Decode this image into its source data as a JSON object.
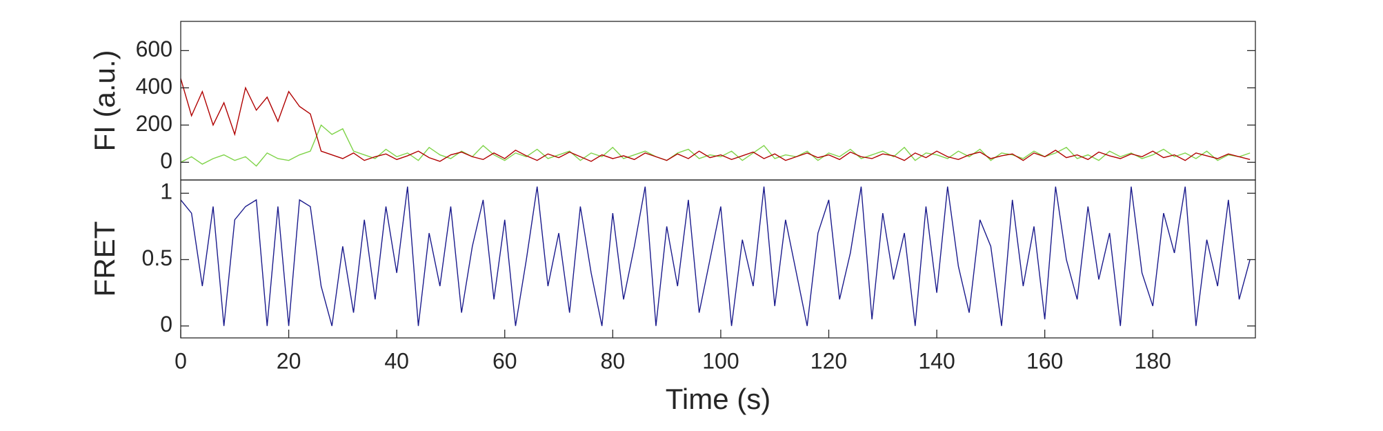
{
  "chart_data": [
    {
      "type": "line",
      "ylabel": "FI (a.u.)",
      "x": [
        0,
        2,
        4,
        6,
        8,
        10,
        12,
        14,
        16,
        18,
        20,
        22,
        24,
        26,
        28,
        30,
        32,
        34,
        36,
        38,
        40,
        42,
        44,
        46,
        48,
        50,
        52,
        54,
        56,
        58,
        60,
        62,
        64,
        66,
        68,
        70,
        72,
        74,
        76,
        78,
        80,
        82,
        84,
        86,
        88,
        90,
        92,
        94,
        96,
        98,
        100,
        102,
        104,
        106,
        108,
        110,
        112,
        114,
        116,
        118,
        120,
        122,
        124,
        126,
        128,
        130,
        132,
        134,
        136,
        138,
        140,
        142,
        144,
        146,
        148,
        150,
        152,
        154,
        156,
        158,
        160,
        162,
        164,
        166,
        168,
        170,
        172,
        174,
        176,
        178,
        180,
        182,
        184,
        186,
        188,
        190,
        192,
        194,
        196,
        198
      ],
      "xlim": [
        0,
        199
      ],
      "ylim": [
        -95,
        757
      ],
      "yticks": [
        0,
        200,
        400,
        600
      ],
      "series": [
        {
          "color": "#7ed348",
          "values": [
            0,
            30,
            -10,
            20,
            40,
            10,
            30,
            -20,
            50,
            20,
            10,
            40,
            60,
            200,
            150,
            180,
            60,
            40,
            20,
            70,
            30,
            50,
            10,
            80,
            40,
            20,
            60,
            30,
            90,
            40,
            10,
            50,
            30,
            70,
            20,
            40,
            60,
            10,
            50,
            30,
            80,
            20,
            40,
            60,
            30,
            10,
            50,
            70,
            20,
            40,
            30,
            60,
            10,
            50,
            90,
            20,
            40,
            30,
            60,
            10,
            50,
            30,
            70,
            20,
            40,
            60,
            30,
            80,
            10,
            50,
            40,
            20,
            60,
            30,
            70,
            10,
            50,
            40,
            20,
            60,
            30,
            50,
            80,
            20,
            40,
            10,
            60,
            30,
            50,
            20,
            40,
            70,
            30,
            50,
            20,
            60,
            10,
            40,
            30,
            50
          ]
        },
        {
          "color": "#b00000",
          "values": [
            450,
            250,
            380,
            200,
            320,
            150,
            400,
            280,
            350,
            220,
            380,
            300,
            260,
            60,
            40,
            20,
            50,
            10,
            30,
            45,
            15,
            35,
            60,
            25,
            5,
            40,
            55,
            30,
            15,
            50,
            20,
            65,
            35,
            10,
            45,
            25,
            55,
            30,
            5,
            40,
            20,
            35,
            15,
            50,
            30,
            10,
            45,
            20,
            60,
            25,
            40,
            15,
            35,
            55,
            20,
            45,
            10,
            30,
            50,
            25,
            40,
            15,
            55,
            30,
            20,
            45,
            35,
            10,
            50,
            25,
            60,
            30,
            15,
            40,
            55,
            20,
            35,
            45,
            10,
            50,
            30,
            65,
            25,
            40,
            15,
            55,
            35,
            20,
            45,
            30,
            60,
            25,
            40,
            10,
            50,
            35,
            20,
            45,
            30,
            15
          ]
        }
      ]
    },
    {
      "type": "line",
      "ylabel": "FRET",
      "xlabel": "Time (s)",
      "x": [
        0,
        2,
        4,
        6,
        8,
        10,
        12,
        14,
        16,
        18,
        20,
        22,
        24,
        26,
        28,
        30,
        32,
        34,
        36,
        38,
        40,
        42,
        44,
        46,
        48,
        50,
        52,
        54,
        56,
        58,
        60,
        62,
        64,
        66,
        68,
        70,
        72,
        74,
        76,
        78,
        80,
        82,
        84,
        86,
        88,
        90,
        92,
        94,
        96,
        98,
        100,
        102,
        104,
        106,
        108,
        110,
        112,
        114,
        116,
        118,
        120,
        122,
        124,
        126,
        128,
        130,
        132,
        134,
        136,
        138,
        140,
        142,
        144,
        146,
        148,
        150,
        152,
        154,
        156,
        158,
        160,
        162,
        164,
        166,
        168,
        170,
        172,
        174,
        176,
        178,
        180,
        182,
        184,
        186,
        188,
        190,
        192,
        194,
        196,
        198
      ],
      "xlim": [
        0,
        199
      ],
      "xticks": [
        0,
        20,
        40,
        60,
        80,
        100,
        120,
        140,
        160,
        180
      ],
      "ylim": [
        -0.09,
        1.1
      ],
      "yticks": [
        0,
        0.5,
        1
      ],
      "series": [
        {
          "color": "#1a1a8c",
          "values": [
            0.95,
            0.85,
            0.3,
            0.9,
            0,
            0.8,
            0.9,
            0.95,
            0,
            0.9,
            0,
            0.95,
            0.9,
            0.3,
            0,
            0.6,
            0.1,
            0.8,
            0.2,
            0.9,
            0.4,
            1.05,
            0,
            0.7,
            0.3,
            0.9,
            0.1,
            0.6,
            0.95,
            0.2,
            0.8,
            0,
            0.5,
            1.05,
            0.3,
            0.7,
            0.1,
            0.9,
            0.4,
            0,
            0.85,
            0.2,
            0.6,
            1.05,
            0,
            0.75,
            0.3,
            0.95,
            0.1,
            0.5,
            0.9,
            0,
            0.65,
            0.3,
            1.05,
            0.15,
            0.8,
            0.4,
            0,
            0.7,
            0.95,
            0.2,
            0.55,
            1.05,
            0.05,
            0.85,
            0.35,
            0.7,
            0,
            0.9,
            0.25,
            1.05,
            0.45,
            0.1,
            0.8,
            0.6,
            0,
            0.95,
            0.3,
            0.75,
            0.05,
            1.05,
            0.5,
            0.2,
            0.9,
            0.35,
            0.7,
            0,
            1.05,
            0.4,
            0.15,
            0.85,
            0.55,
            1.05,
            0,
            0.65,
            0.3,
            0.95,
            0.2,
            0.5
          ]
        }
      ]
    }
  ]
}
